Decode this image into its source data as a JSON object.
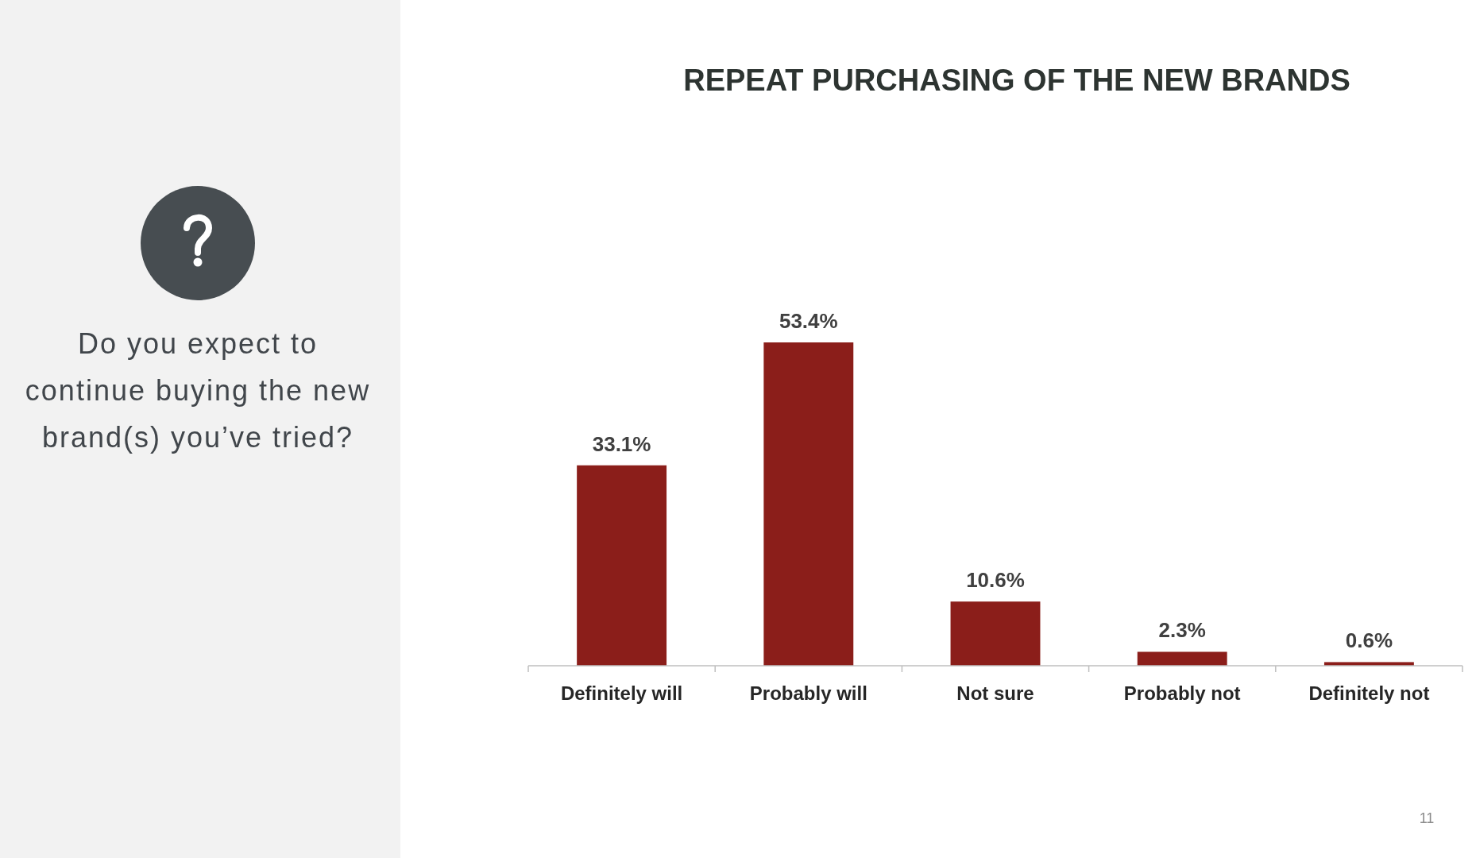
{
  "chart_data": {
    "type": "bar",
    "title": "REPEAT PURCHASING OF THE NEW BRANDS",
    "subtitle": "Do you expect to continue buying the new brand(s) you’ve tried?",
    "categories": [
      "Definitely will",
      "Probably will",
      "Not sure",
      "Probably not",
      "Definitely not"
    ],
    "values": [
      33.1,
      53.4,
      10.6,
      2.3,
      0.6
    ],
    "value_labels": [
      "33.1%",
      "53.4%",
      "10.6%",
      "2.3%",
      "0.6%"
    ],
    "color": "#8b1e1a",
    "annotations": [
      "11"
    ]
  }
}
